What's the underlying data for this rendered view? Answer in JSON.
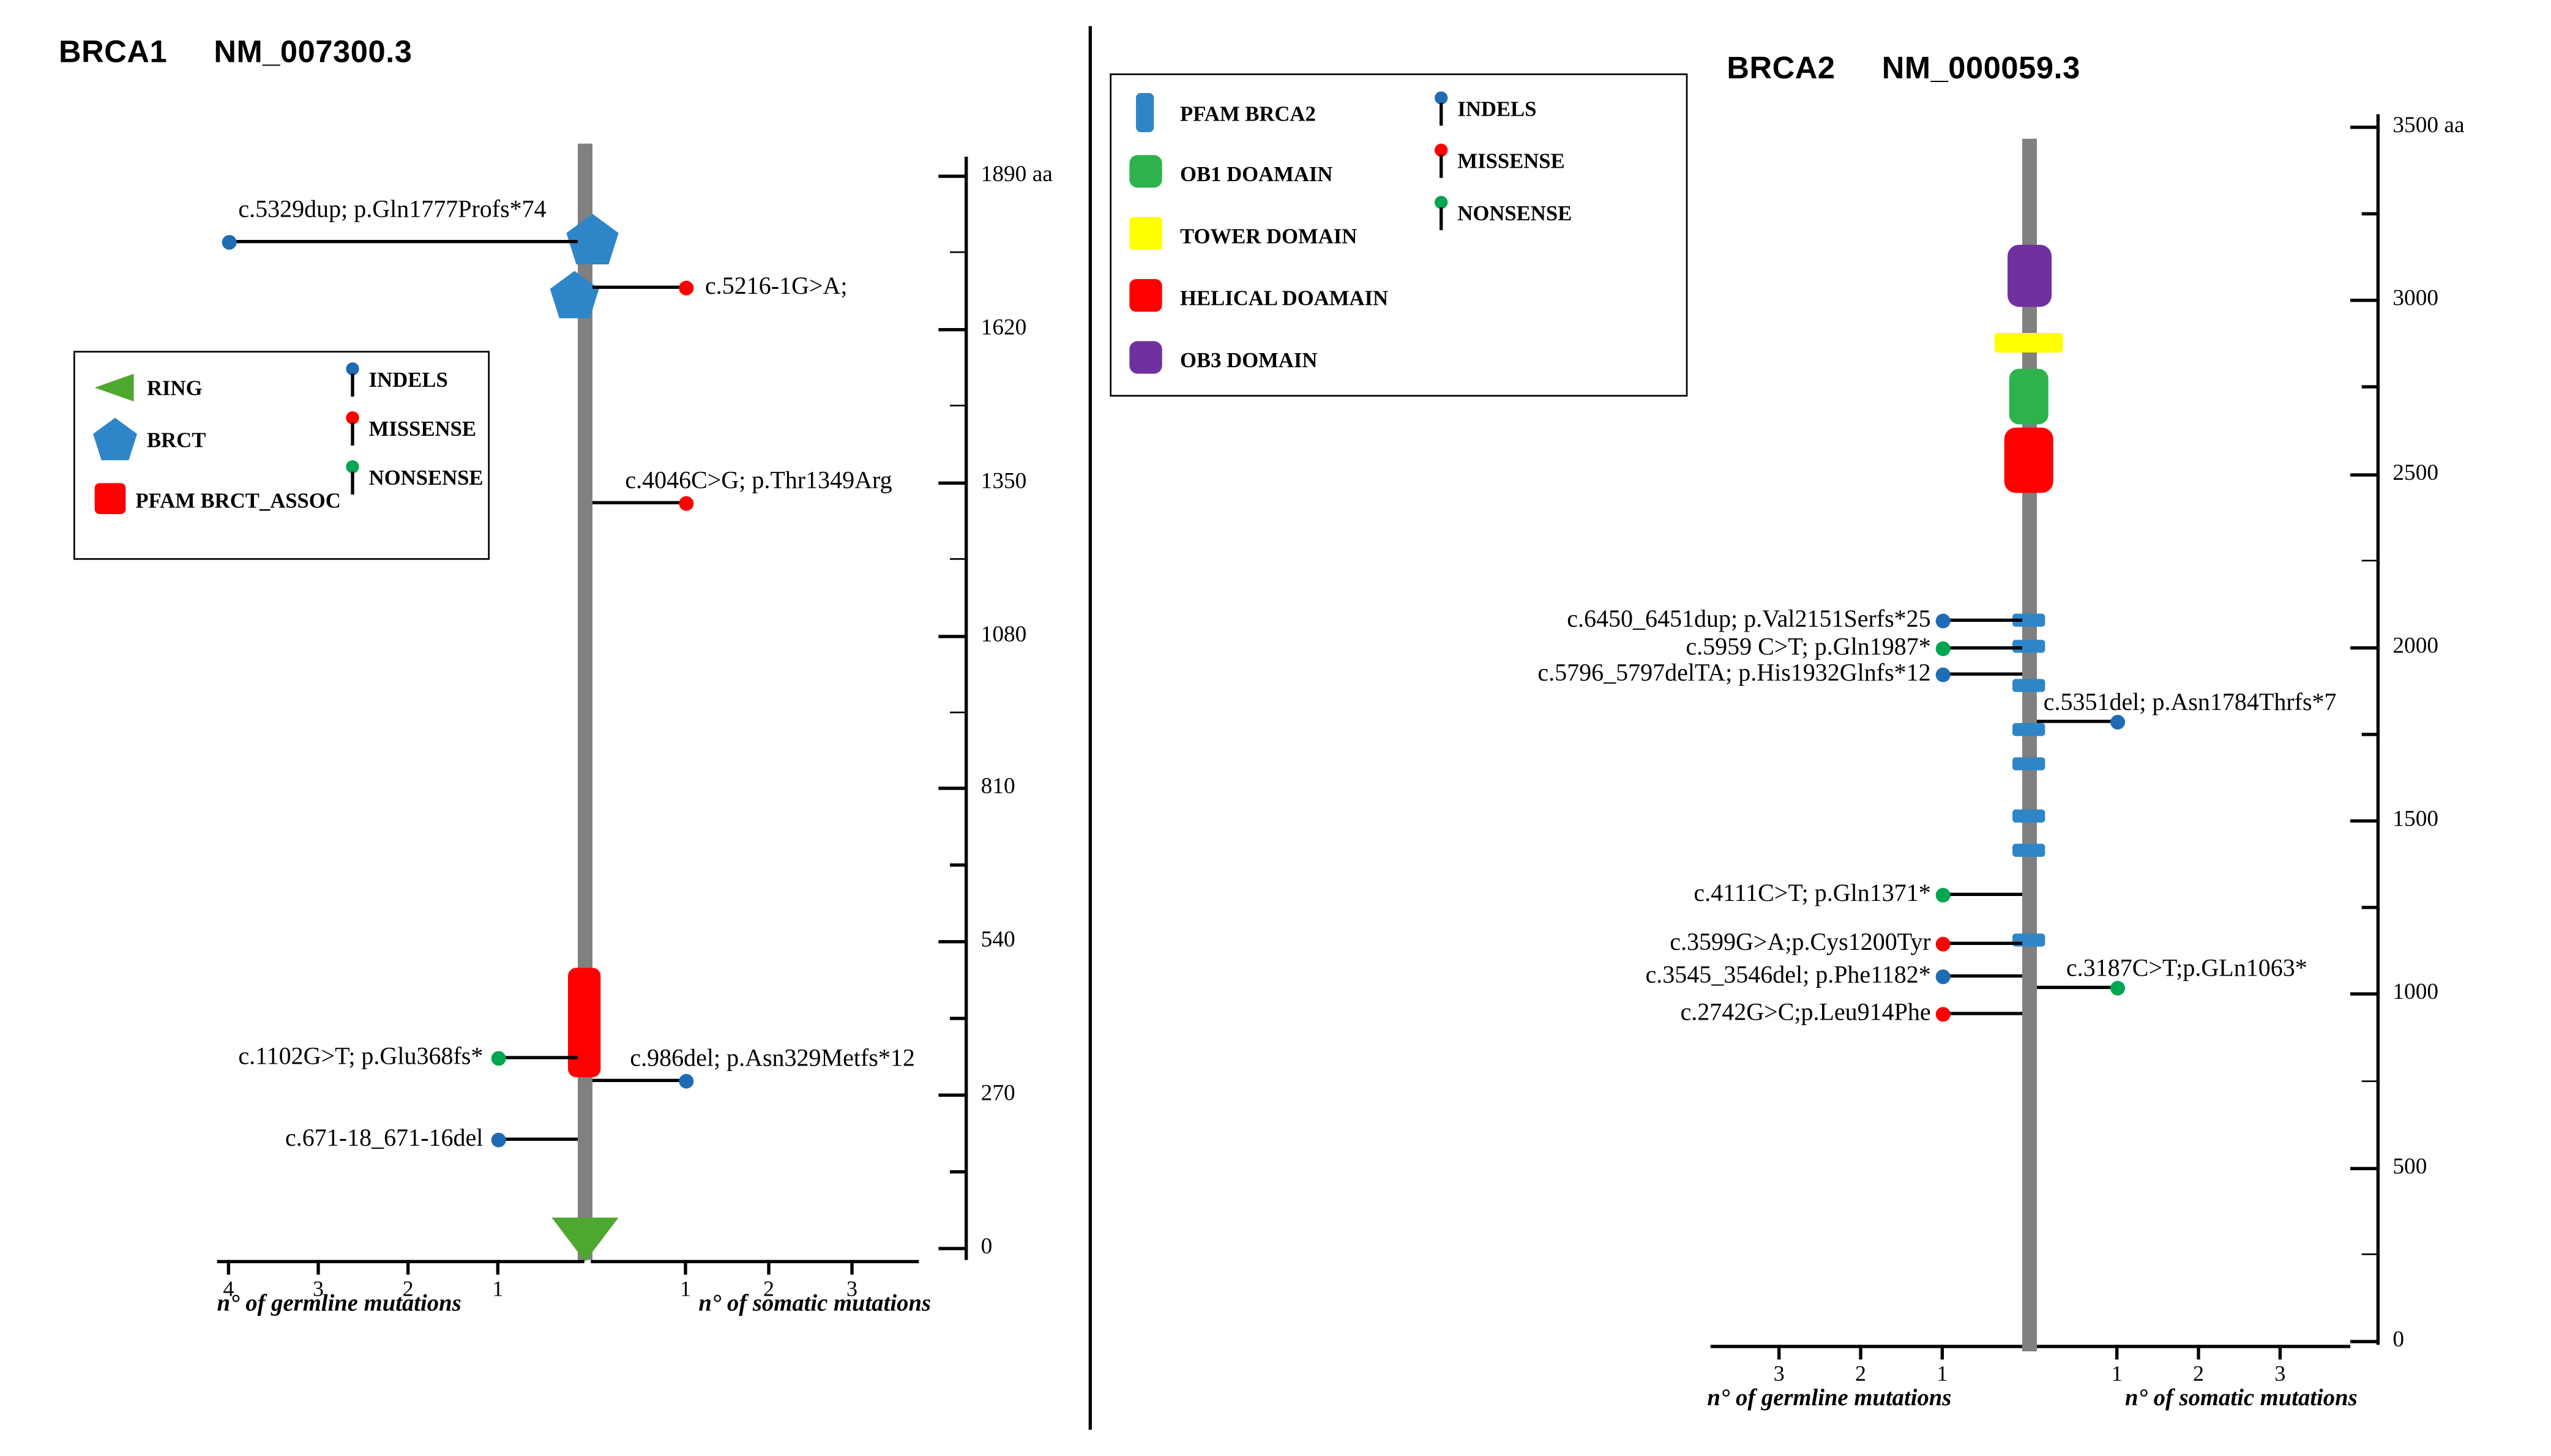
{
  "colors": {
    "protein_bar": "#808080",
    "indel": "#1f6cb4",
    "missense": "#ff0000",
    "nonsense": "#00a651",
    "ring": "#4ea72e",
    "brct": "#2e86c8",
    "pfam_brct_assoc": "#ff0000",
    "pfam_brca2": "#2e86c8",
    "ob1": "#2eb34a",
    "tower": "#ffff00",
    "helical": "#ff0000",
    "ob3": "#7030a0",
    "axis_line": "#000000"
  },
  "brca1": {
    "gene": "BRCA1",
    "transcript": "NM_007300.3",
    "ruler_labels": [
      "1890 aa",
      "1620",
      "1350",
      "1080",
      "810",
      "540",
      "270",
      "0"
    ],
    "legend": {
      "domains": [
        {
          "name": "RING",
          "color_key": "ring"
        },
        {
          "name": "BRCT",
          "color_key": "brct"
        },
        {
          "name": "PFAM BRCT_ASSOC",
          "color_key": "pfam_brct_assoc"
        }
      ],
      "mutation_types": [
        {
          "name": "INDELS",
          "color_key": "indel"
        },
        {
          "name": "MISSENSE",
          "color_key": "missense"
        },
        {
          "name": "NONSENSE",
          "color_key": "nonsense"
        }
      ]
    },
    "germline_axis": {
      "label": "n° of germline mutations",
      "ticks": [
        "4",
        "3",
        "2",
        "1"
      ]
    },
    "somatic_axis": {
      "label": "n° of somatic mutations",
      "ticks": [
        "1",
        "2",
        "3"
      ]
    },
    "germline_mutations": [
      {
        "label": "c.5329dup;  p.Gln1777Profs*74",
        "type": "indel",
        "count": 4
      },
      {
        "label": "c.1102G>T;  p.Glu368fs*",
        "type": "nonsense",
        "count": 1
      },
      {
        "label": "c.671-18_671-16del",
        "type": "indel",
        "count": 1
      }
    ],
    "somatic_mutations": [
      {
        "label": "c.5216-1G>A;",
        "type": "missense",
        "count": 1
      },
      {
        "label": "c.4046C>G;  p.Thr1349Arg",
        "type": "missense",
        "count": 1
      },
      {
        "label": "c.986del;  p.Asn329Metfs*12",
        "type": "indel",
        "count": 1
      }
    ]
  },
  "brca2": {
    "gene": "BRCA2",
    "transcript": "NM_000059.3",
    "ruler_labels": [
      "3500 aa",
      "3000",
      "2500",
      "2000",
      "1500",
      "1000",
      "500",
      "0"
    ],
    "legend": {
      "domains": [
        {
          "name": "PFAM BRCA2",
          "color_key": "pfam_brca2"
        },
        {
          "name": "OB1 DOAMAIN",
          "color_key": "ob1"
        },
        {
          "name": "TOWER DOMAIN",
          "color_key": "tower"
        },
        {
          "name": "HELICAL DOAMAIN",
          "color_key": "helical"
        },
        {
          "name": "OB3 DOMAIN",
          "color_key": "ob3"
        }
      ],
      "mutation_types": [
        {
          "name": "INDELS",
          "color_key": "indel"
        },
        {
          "name": "MISSENSE",
          "color_key": "missense"
        },
        {
          "name": "NONSENSE",
          "color_key": "nonsense"
        }
      ]
    },
    "germline_axis": {
      "label": "n° of germline mutations",
      "ticks": [
        "3",
        "2",
        "1"
      ]
    },
    "somatic_axis": {
      "label": "n° of somatic mutations",
      "ticks": [
        "1",
        "2",
        "3"
      ]
    },
    "germline_mutations": [
      {
        "label": "c.6450_6451dup;  p.Val2151Serfs*25",
        "type": "indel",
        "count": 1
      },
      {
        "label": "c.5959 C>T;  p.Gln1987*",
        "type": "nonsense",
        "count": 1
      },
      {
        "label": "c.5796_5797delTA;  p.His1932Glnfs*12",
        "type": "indel",
        "count": 1
      },
      {
        "label": "c.4111C>T;  p.Gln1371*",
        "type": "nonsense",
        "count": 1
      },
      {
        "label": "c.3599G>A;p.Cys1200Tyr",
        "type": "missense",
        "count": 1
      },
      {
        "label": "c.3545_3546del;  p.Phe1182*",
        "type": "indel",
        "count": 1
      },
      {
        "label": "c.2742G>C;p.Leu914Phe",
        "type": "missense",
        "count": 1
      }
    ],
    "somatic_mutations": [
      {
        "label": "c.5351del;  p.Asn1784Thrfs*7",
        "type": "indel",
        "count": 1
      },
      {
        "label": "c.3187C>T;p.GLn1063*",
        "type": "nonsense",
        "count": 1
      }
    ]
  },
  "chart_data": [
    {
      "type": "lollipop",
      "title": "BRCA1 NM_007300.3",
      "aa_range": [
        0,
        1890
      ],
      "aa_ticks": [
        0,
        270,
        540,
        810,
        1080,
        1350,
        1620,
        1890
      ],
      "domains": [
        "RING",
        "BRCT",
        "BRCT",
        "PFAM BRCT_ASSOC"
      ],
      "germline_axis_max": 4,
      "somatic_axis_max": 3,
      "germline": [
        {
          "mutation": "c.5329dup; p.Gln1777Profs*74",
          "class": "indel",
          "n": 4
        },
        {
          "mutation": "c.1102G>T; p.Glu368fs*",
          "class": "nonsense",
          "n": 1
        },
        {
          "mutation": "c.671-18_671-16del",
          "class": "indel",
          "n": 1
        }
      ],
      "somatic": [
        {
          "mutation": "c.5216-1G>A;",
          "class": "missense",
          "n": 1
        },
        {
          "mutation": "c.4046C>G; p.Thr1349Arg",
          "class": "missense",
          "n": 1
        },
        {
          "mutation": "c.986del; p.Asn329Metfs*12",
          "class": "indel",
          "n": 1
        }
      ]
    },
    {
      "type": "lollipop",
      "title": "BRCA2 NM_000059.3",
      "aa_range": [
        0,
        3500
      ],
      "aa_ticks": [
        0,
        500,
        1000,
        1500,
        2000,
        2500,
        3000,
        3500
      ],
      "domains": [
        "PFAM BRCA2",
        "OB1 DOAMAIN",
        "TOWER DOMAIN",
        "HELICAL DOAMAIN",
        "OB3 DOMAIN"
      ],
      "germline_axis_max": 3,
      "somatic_axis_max": 3,
      "germline": [
        {
          "mutation": "c.6450_6451dup; p.Val2151Serfs*25",
          "class": "indel",
          "n": 1
        },
        {
          "mutation": "c.5959 C>T; p.Gln1987*",
          "class": "nonsense",
          "n": 1
        },
        {
          "mutation": "c.5796_5797delTA; p.His1932Glnfs*12",
          "class": "indel",
          "n": 1
        },
        {
          "mutation": "c.4111C>T; p.Gln1371*",
          "class": "nonsense",
          "n": 1
        },
        {
          "mutation": "c.3599G>A;p.Cys1200Tyr",
          "class": "missense",
          "n": 1
        },
        {
          "mutation": "c.3545_3546del; p.Phe1182*",
          "class": "indel",
          "n": 1
        },
        {
          "mutation": "c.2742G>C;p.Leu914Phe",
          "class": "missense",
          "n": 1
        }
      ],
      "somatic": [
        {
          "mutation": "c.5351del; p.Asn1784Thrfs*7",
          "class": "indel",
          "n": 1
        },
        {
          "mutation": "c.3187C>T;p.GLn1063*",
          "class": "nonsense",
          "n": 1
        }
      ]
    }
  ]
}
